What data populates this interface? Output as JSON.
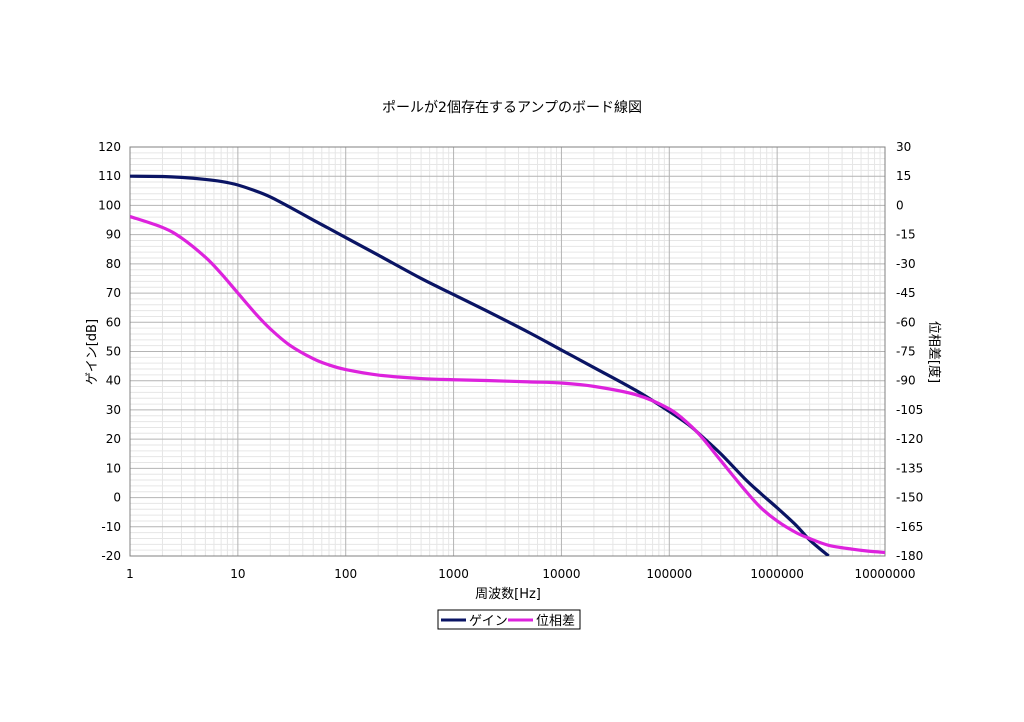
{
  "chart_data": {
    "type": "line",
    "title": "ポールが2個存在するアンプのボード線図",
    "xlabel": "周波数[Hz]",
    "ylabel": "ゲイン[dB]",
    "y2label": "位相差[度]",
    "x_scale": "log",
    "xlim": [
      1,
      10000000
    ],
    "x_ticks": [
      "1",
      "10",
      "100",
      "1000",
      "10000",
      "100000",
      "1000000",
      "10000000"
    ],
    "ylim": [
      -20,
      120
    ],
    "y_ticks": [
      "120",
      "110",
      "100",
      "90",
      "80",
      "70",
      "60",
      "50",
      "40",
      "30",
      "20",
      "10",
      "0",
      "-10",
      "-20"
    ],
    "y2lim": [
      -180,
      30
    ],
    "y2_ticks": [
      "30",
      "15",
      "0",
      "-15",
      "-30",
      "-45",
      "-60",
      "-75",
      "-90",
      "-105",
      "-120",
      "-135",
      "-150",
      "-165",
      "-180"
    ],
    "grid": true,
    "legend_position": "bottom",
    "series": [
      {
        "name": "ゲイン",
        "axis": "left",
        "color": "#0a1464",
        "x": [
          1,
          2,
          3,
          5,
          7,
          10,
          15,
          20,
          30,
          50,
          70,
          100,
          200,
          500,
          1000,
          2000,
          5000,
          10000,
          20000,
          50000,
          100000,
          150000,
          200000,
          300000,
          500000,
          700000,
          1000000,
          1500000,
          2000000,
          3000000
        ],
        "values": [
          110,
          109.9,
          109.6,
          108.9,
          108.2,
          107,
          104.8,
          102.9,
          99.5,
          95.0,
          92.1,
          89.0,
          83,
          75,
          69.5,
          64,
          56.5,
          50.5,
          44.5,
          36.5,
          29.5,
          25,
          21,
          15,
          6.5,
          1.5,
          -3.5,
          -9.5,
          -14.5,
          -20
        ]
      },
      {
        "name": "位相差",
        "axis": "right",
        "color": "#dd22dd",
        "x": [
          1,
          2,
          3,
          5,
          7,
          10,
          15,
          20,
          30,
          50,
          70,
          100,
          200,
          500,
          1000,
          2000,
          5000,
          10000,
          20000,
          50000,
          100000,
          150000,
          200000,
          300000,
          500000,
          700000,
          1000000,
          1500000,
          2000000,
          3000000,
          5000000,
          7000000,
          10000000
        ],
        "values": [
          -5.7,
          -11.3,
          -16.7,
          -26.6,
          -35,
          -45,
          -56.3,
          -63.4,
          -71.6,
          -78.7,
          -81.9,
          -84.3,
          -87.1,
          -88.9,
          -89.5,
          -89.9,
          -90.6,
          -91.2,
          -92.9,
          -97.3,
          -104.5,
          -112,
          -119,
          -131,
          -146,
          -155,
          -162,
          -168,
          -171,
          -174.5,
          -176.5,
          -177.5,
          -178.2
        ]
      }
    ]
  }
}
